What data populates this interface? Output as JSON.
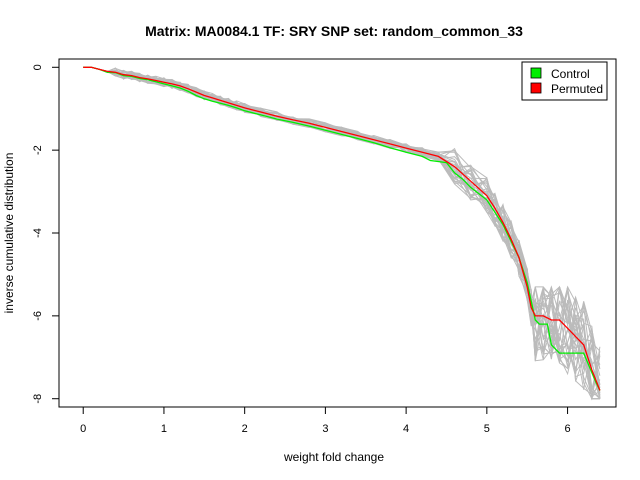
{
  "chart_data": {
    "type": "line",
    "title": "Matrix: MA0084.1 TF: SRY SNP set: random_common_33",
    "xlabel": "weight fold change",
    "ylabel": "inverse cumulative distribution",
    "xlim": [
      -0.3,
      6.6
    ],
    "ylim": [
      -8.2,
      0.2
    ],
    "x_ticks": [
      0,
      1,
      2,
      3,
      4,
      5,
      6
    ],
    "y_ticks": [
      0,
      -2,
      -4,
      -6,
      -8
    ],
    "grid": false,
    "legend_position": "top-right",
    "legend": [
      {
        "label": "Control",
        "color": "#00ee00"
      },
      {
        "label": "Permuted",
        "color": "#ff0000"
      }
    ],
    "series": [
      {
        "name": "Control",
        "color": "#00ee00",
        "x": [
          0,
          0.1,
          0.2,
          0.3,
          0.4,
          0.5,
          0.6,
          0.7,
          0.8,
          0.9,
          1.0,
          1.1,
          1.2,
          1.3,
          1.4,
          1.5,
          1.6,
          1.7,
          1.8,
          1.9,
          2.0,
          2.2,
          2.4,
          2.6,
          2.8,
          3.0,
          3.2,
          3.4,
          3.6,
          3.8,
          4.0,
          4.2,
          4.3,
          4.5,
          4.6,
          4.7,
          4.8,
          4.9,
          5.0,
          5.1,
          5.2,
          5.3,
          5.4,
          5.5,
          5.6,
          5.65,
          5.75,
          5.8,
          5.9,
          6.0,
          6.2,
          6.35,
          6.4
        ],
        "y": [
          0,
          0,
          -0.05,
          -0.12,
          -0.13,
          -0.2,
          -0.22,
          -0.27,
          -0.3,
          -0.35,
          -0.4,
          -0.45,
          -0.5,
          -0.58,
          -0.68,
          -0.76,
          -0.82,
          -0.87,
          -0.92,
          -0.98,
          -1.05,
          -1.15,
          -1.25,
          -1.33,
          -1.42,
          -1.52,
          -1.62,
          -1.72,
          -1.82,
          -1.94,
          -2.05,
          -2.15,
          -2.25,
          -2.3,
          -2.55,
          -2.7,
          -2.9,
          -3.05,
          -3.2,
          -3.5,
          -3.8,
          -4.2,
          -4.6,
          -5.2,
          -6.1,
          -6.2,
          -6.2,
          -6.7,
          -6.9,
          -6.9,
          -6.9,
          -7.6,
          -7.8
        ]
      },
      {
        "name": "Permuted",
        "color": "#ff0000",
        "x": [
          0,
          0.1,
          0.2,
          0.3,
          0.4,
          0.5,
          0.6,
          0.7,
          0.8,
          0.9,
          1.0,
          1.1,
          1.2,
          1.3,
          1.4,
          1.5,
          1.6,
          1.7,
          1.8,
          1.9,
          2.0,
          2.2,
          2.4,
          2.6,
          2.8,
          3.0,
          3.2,
          3.4,
          3.6,
          3.8,
          4.0,
          4.2,
          4.4,
          4.6,
          4.8,
          5.0,
          5.1,
          5.2,
          5.3,
          5.4,
          5.5,
          5.55,
          5.6,
          5.7,
          5.8,
          5.9,
          6.0,
          6.1,
          6.2,
          6.3,
          6.4
        ],
        "y": [
          0,
          0,
          -0.05,
          -0.1,
          -0.12,
          -0.18,
          -0.2,
          -0.25,
          -0.28,
          -0.32,
          -0.36,
          -0.4,
          -0.45,
          -0.52,
          -0.6,
          -0.68,
          -0.74,
          -0.8,
          -0.86,
          -0.92,
          -0.98,
          -1.08,
          -1.18,
          -1.27,
          -1.35,
          -1.45,
          -1.55,
          -1.65,
          -1.75,
          -1.85,
          -1.95,
          -2.05,
          -2.15,
          -2.4,
          -2.75,
          -3.1,
          -3.4,
          -3.75,
          -4.15,
          -4.6,
          -5.3,
          -5.8,
          -6.0,
          -6.0,
          -6.1,
          -6.1,
          -6.3,
          -6.5,
          -6.7,
          -7.3,
          -7.8
        ]
      }
    ],
    "background_series_color": "#bbbbbb",
    "background_series_count": 30
  }
}
